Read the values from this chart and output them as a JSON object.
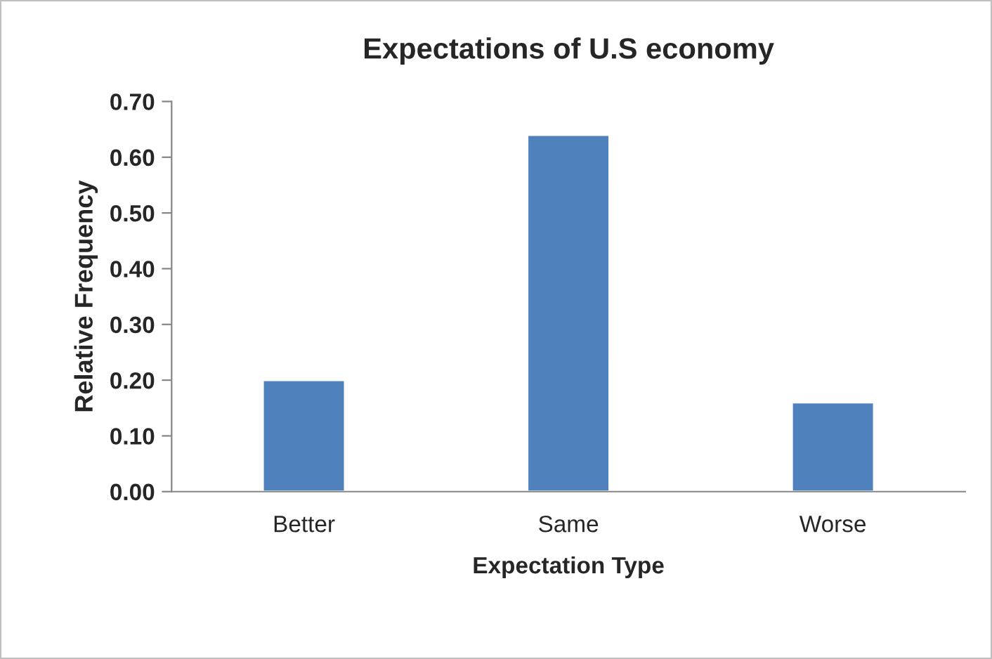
{
  "chart_data": {
    "type": "bar",
    "title": "Expectations of U.S economy",
    "xlabel": "Expectation Type",
    "ylabel": "Relative Frequency",
    "categories": [
      "Better",
      "Same",
      "Worse"
    ],
    "values": [
      0.2,
      0.64,
      0.16
    ],
    "color": "#4f81bd",
    "ylim": [
      0,
      0.7
    ],
    "yticks": [
      {
        "value": 0,
        "label": "0.00"
      },
      {
        "value": 0.1,
        "label": "0.10"
      },
      {
        "value": 0.2,
        "label": "0.20"
      },
      {
        "value": 0.3,
        "label": "0.30"
      },
      {
        "value": 0.4,
        "label": "0.40"
      },
      {
        "value": 0.5,
        "label": "0.50"
      },
      {
        "value": 0.6,
        "label": "0.60"
      },
      {
        "value": 0.7,
        "label": "0.70"
      }
    ],
    "grid": false,
    "legend": false
  }
}
